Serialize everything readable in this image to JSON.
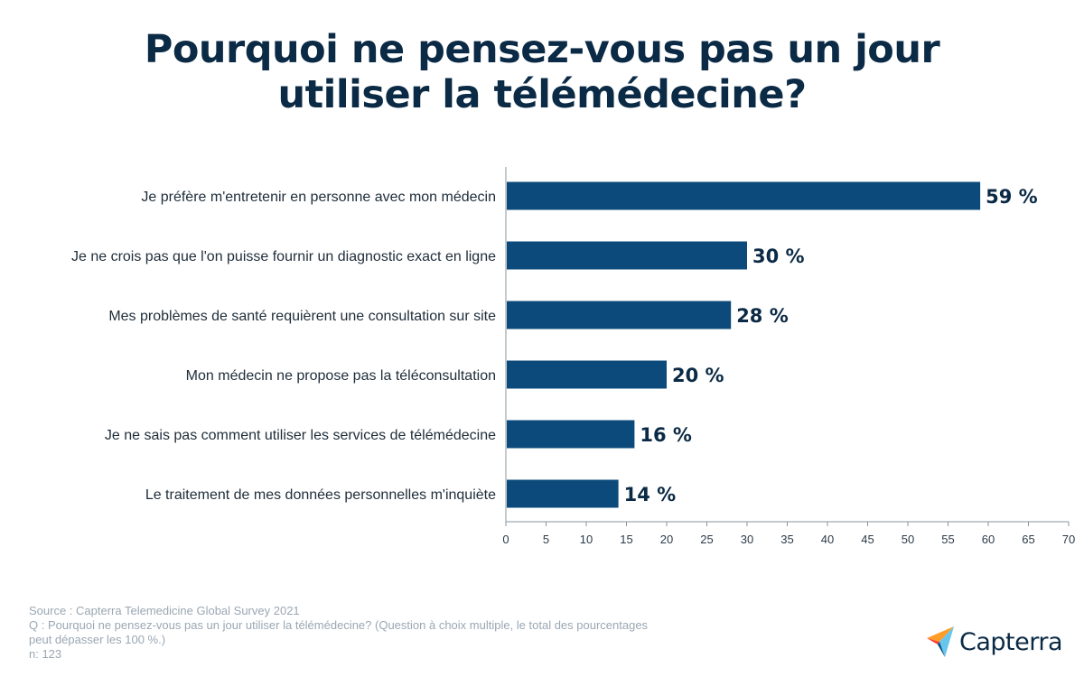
{
  "title_lines": [
    "Pourquoi ne pensez-vous pas un jour",
    "utiliser la télémédecine?"
  ],
  "colors": {
    "bar": "#0b4a7a",
    "title": "#0b2a45",
    "axis": "#8a949c",
    "footer": "#9aa7b3"
  },
  "chart_data": {
    "type": "bar",
    "orientation": "horizontal",
    "title": "Pourquoi ne pensez-vous pas un jour utiliser la télémédecine?",
    "categories": [
      "Je préfère m'entretenir en personne avec mon médecin",
      "Je ne crois pas que l'on puisse fournir un diagnostic exact en ligne",
      "Mes problèmes de santé requièrent une consultation sur site",
      "Mon médecin ne propose pas la téléconsultation",
      "Je ne sais pas comment utiliser les services de télémédecine",
      "Le traitement de mes données personnelles m'inquiète"
    ],
    "values": [
      59,
      30,
      28,
      20,
      16,
      14
    ],
    "value_labels": [
      "59 %",
      "30 %",
      "28 %",
      "20 %",
      "16 %",
      "14 %"
    ],
    "xlim": [
      0,
      70
    ],
    "xticks": [
      0,
      5,
      10,
      15,
      20,
      25,
      30,
      35,
      40,
      45,
      50,
      55,
      60,
      65,
      70
    ],
    "xlabel": "",
    "ylabel": "",
    "grid": false,
    "legend": "none"
  },
  "footer": {
    "source": "Source : Capterra Telemedicine Global Survey 2021",
    "question_line1": "Q : Pourquoi ne pensez-vous pas un jour utiliser la télémédecine? (Question à choix multiple, le total des pourcentages",
    "question_line2": "peut dépasser les 100 %.)",
    "sample": "n: 123"
  },
  "logo": {
    "text": "Capterra",
    "icon": "capterra-arrow-icon"
  }
}
